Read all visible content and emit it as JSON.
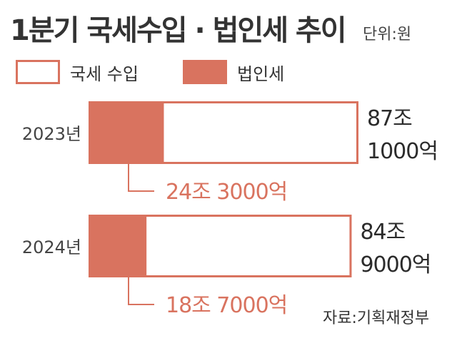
{
  "header": {
    "title": "1분기 국세수입 · 법인세 추이",
    "unit": "단위:원"
  },
  "legend": [
    {
      "label": "국세 수입",
      "series": "total"
    },
    {
      "label": "법인세",
      "series": "corp"
    }
  ],
  "colors": {
    "accent": "#d9735f",
    "total_fill": "#ffffff",
    "text_dark": "#2b2b2b"
  },
  "source": "자료:기획재정부",
  "chart_data": {
    "type": "bar",
    "orientation": "horizontal",
    "categories": [
      "2023년",
      "2024년"
    ],
    "series": [
      {
        "name": "국세 수입",
        "values": [
          87.1,
          84.9
        ],
        "labels": [
          "87조 1000억",
          "84조 9000억"
        ]
      },
      {
        "name": "법인세",
        "values": [
          24.3,
          18.7
        ],
        "labels": [
          "24조 3000억",
          "18조 7000억"
        ]
      }
    ],
    "xlim": [
      0,
      87.1
    ],
    "legend": "top-left",
    "grid": false
  }
}
